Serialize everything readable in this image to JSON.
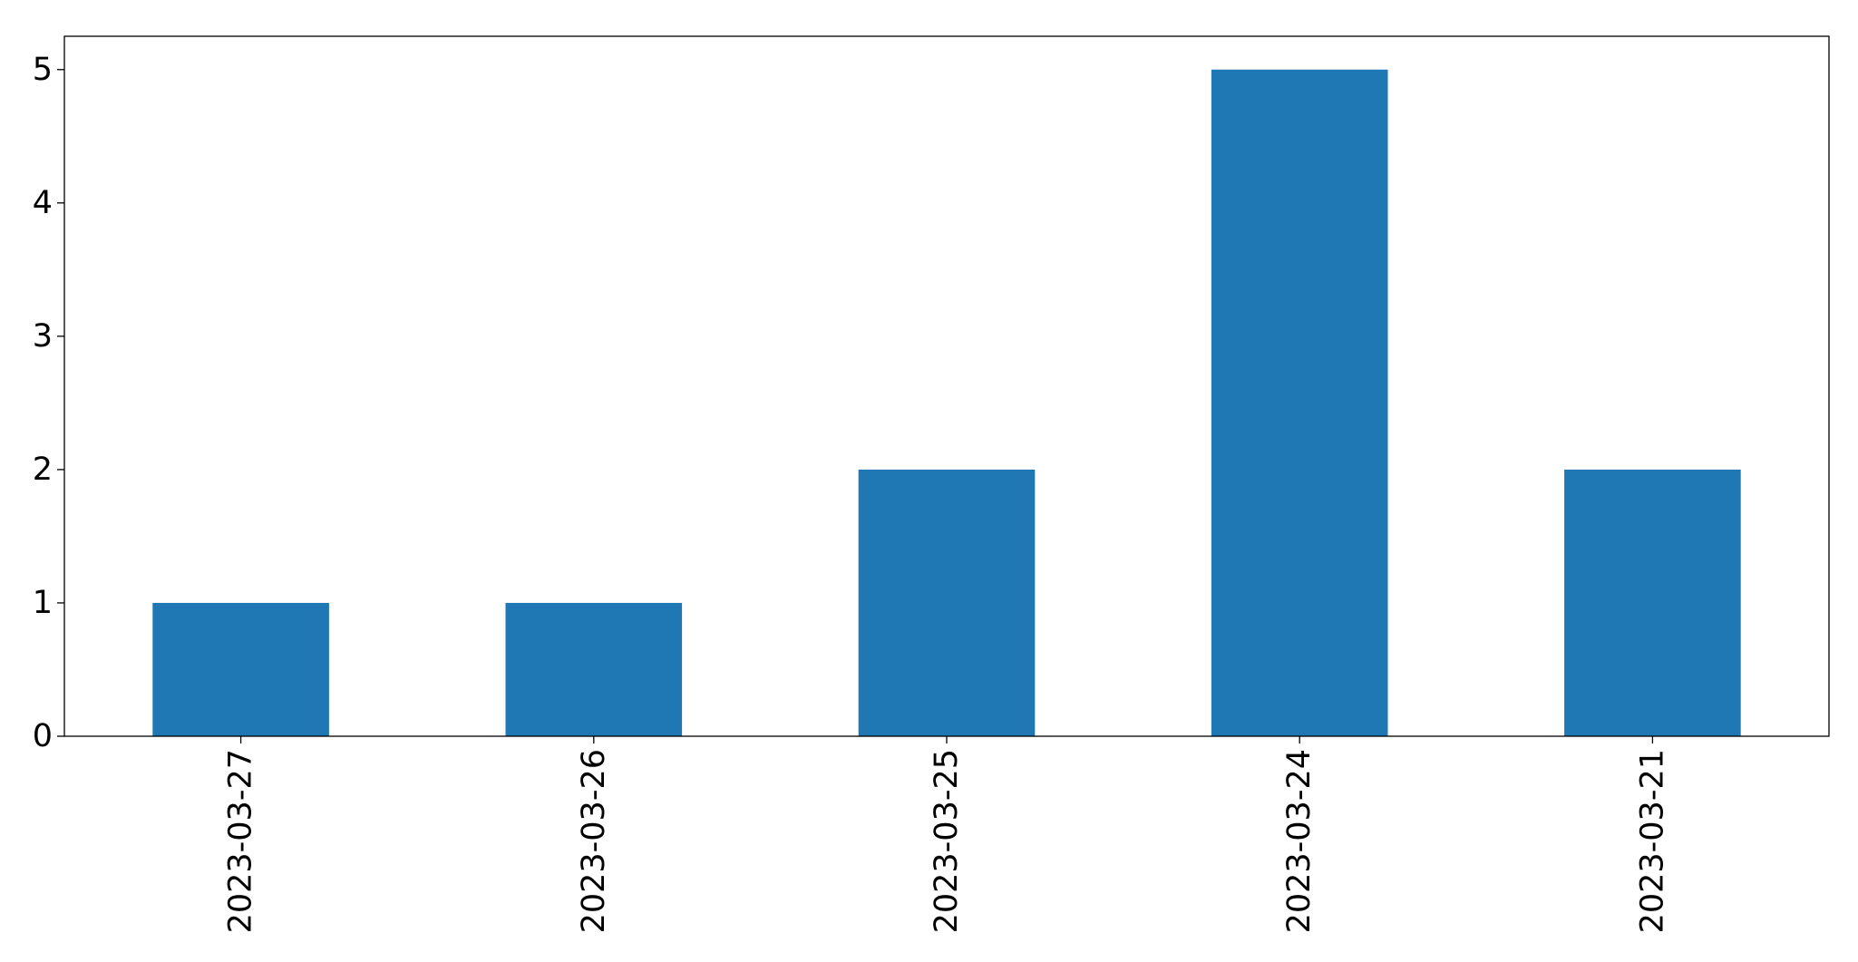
{
  "chart_data": {
    "type": "bar",
    "title": "",
    "xlabel": "",
    "ylabel": "",
    "categories": [
      "2023-03-27",
      "2023-03-26",
      "2023-03-25",
      "2023-03-24",
      "2023-03-21"
    ],
    "values": [
      1,
      1,
      2,
      5,
      2
    ],
    "ylim": [
      0,
      5.25
    ],
    "yticks": [
      0,
      1,
      2,
      3,
      4,
      5
    ],
    "ytick_labels": [
      "0",
      "1",
      "2",
      "3",
      "4",
      "5"
    ],
    "grid": false,
    "legend": "none",
    "colors": {
      "bar": "#1f77b4",
      "axis": "#000000",
      "background": "#ffffff"
    }
  }
}
